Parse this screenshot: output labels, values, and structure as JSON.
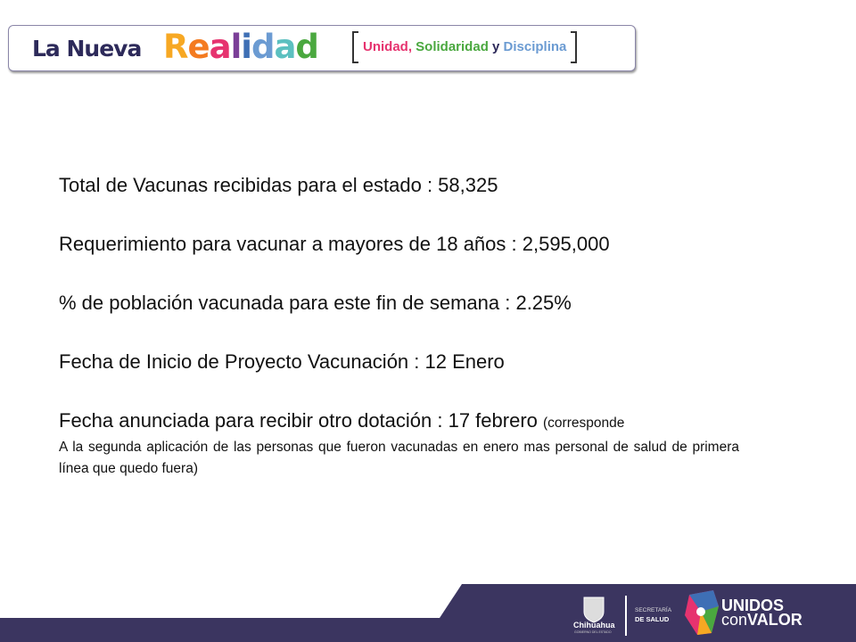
{
  "header": {
    "la_nueva": "La Nueva",
    "realidad_letters": [
      {
        "ch": "R",
        "color": "#f7a823"
      },
      {
        "ch": "e",
        "color": "#f47b20"
      },
      {
        "ch": "a",
        "color": "#e6336f"
      },
      {
        "ch": "l",
        "color": "#7b3f98"
      },
      {
        "ch": "i",
        "color": "#3e6fb5"
      },
      {
        "ch": "d",
        "color": "#6b9bd2"
      },
      {
        "ch": "a",
        "color": "#5cc0c0"
      },
      {
        "ch": "d",
        "color": "#4aa83f"
      }
    ],
    "motto": {
      "unidad": "Unidad,",
      "solidaridad": "Solidaridad",
      "y": "y",
      "disciplina": "Disciplina"
    },
    "motto_colors": {
      "unidad": "#e6336f",
      "solidaridad": "#4aa83f",
      "y": "#2d2a5a",
      "disciplina": "#6b9bd2"
    }
  },
  "content": {
    "lines": [
      "Total de Vacunas recibidas para el estado : 58,325",
      "Requerimiento para vacunar a mayores de 18 años : 2,595,000",
      "% de población vacunada para este fin de semana : 2.25%",
      "Fecha de Inicio de Proyecto Vacunación : 12 Enero",
      "Fecha anunciada para recibir otro dotación : 17 febrero"
    ],
    "last_suffix": "(corresponde",
    "note": "A la segunda aplicación de las personas que fueron vacunadas en enero mas personal de salud de primera línea que quedo fuera)"
  },
  "footer": {
    "band_color": "#3b3560",
    "chihuahua": "Chihuahua",
    "gobierno": "GOBIERNO DEL ESTADO",
    "secretaria": "SECRETARÍA",
    "de_salud": "DE SALUD",
    "unidos": "UNIDOS",
    "con": "con",
    "valor": "VALOR"
  }
}
